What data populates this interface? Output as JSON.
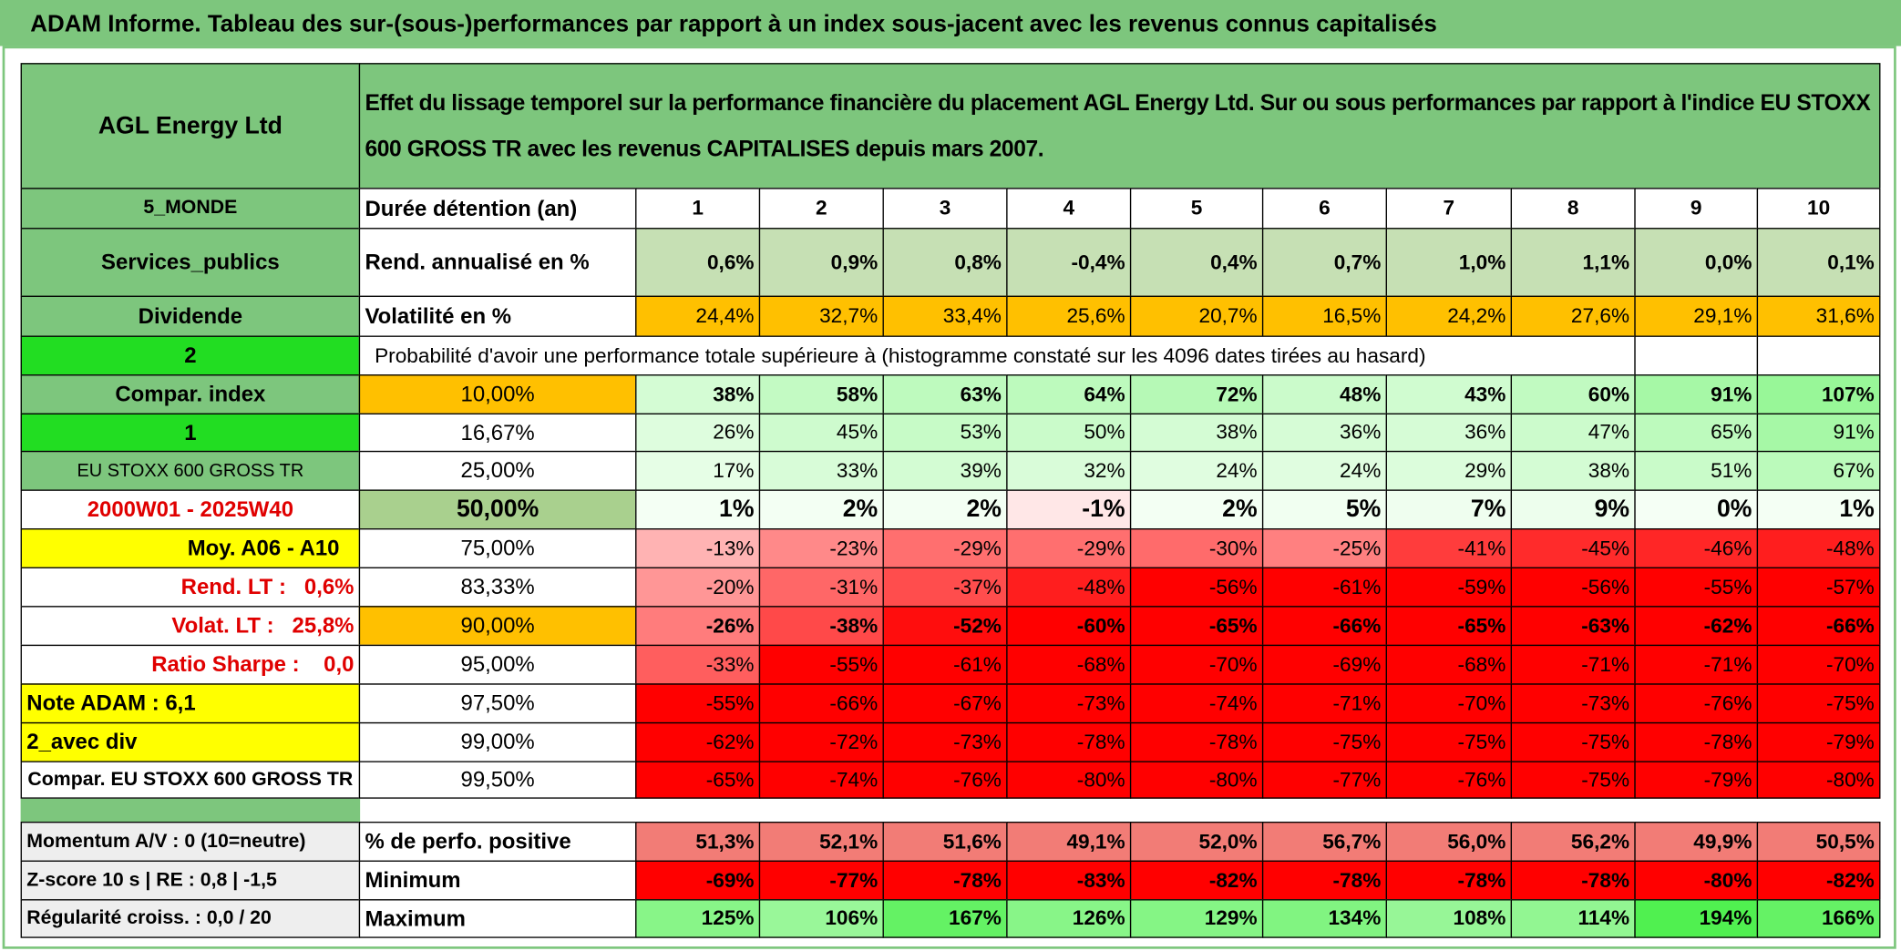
{
  "title": "ADAM Informe. Tableau des sur-(sous-)performances par rapport à un index sous-jacent avec les revenus connus capitalisés",
  "header": {
    "name": "AGL Energy Ltd",
    "description": "Effet du lissage temporel sur la performance financière du placement AGL Energy Ltd. Sur ou sous performances par rapport à l'indice EU STOXX 600 GROSS TR avec les revenus CAPITALISES depuis mars 2007."
  },
  "rows": [
    {
      "label": "5_MONDE",
      "metric": "Durée détention (an)",
      "values": [
        1,
        2,
        3,
        4,
        5,
        6,
        7,
        8,
        9,
        10
      ]
    },
    {
      "label": "Services_publics",
      "metric": "Rend. annualisé en %",
      "values": [
        "0,6%",
        "0,9%",
        "0,8%",
        "-0,4%",
        "0,4%",
        "0,7%",
        "1,0%",
        "1,1%",
        "0,0%",
        "0,1%"
      ]
    },
    {
      "label": "Dividende",
      "metric": "Volatilité en %",
      "values": [
        "24,4%",
        "32,7%",
        "33,4%",
        "25,6%",
        "20,7%",
        "16,5%",
        "24,2%",
        "27,6%",
        "29,1%",
        "31,6%"
      ]
    },
    {
      "label": "2",
      "note": "Probabilité d'avoir une performance totale supérieure à (histogramme constaté sur les 4096 dates tirées au hasard)"
    },
    {
      "label": "Compar. index",
      "metric": "10,00%",
      "values": [
        "38%",
        "58%",
        "63%",
        "64%",
        "72%",
        "48%",
        "43%",
        "60%",
        "91%",
        "107%"
      ]
    },
    {
      "label": "1",
      "metric": "16,67%",
      "values": [
        "26%",
        "45%",
        "53%",
        "50%",
        "38%",
        "36%",
        "36%",
        "47%",
        "65%",
        "91%"
      ]
    },
    {
      "label": "EU STOXX 600 GROSS TR",
      "metric": "25,00%",
      "values": [
        "17%",
        "33%",
        "39%",
        "32%",
        "24%",
        "24%",
        "29%",
        "38%",
        "51%",
        "67%"
      ]
    },
    {
      "label": "2000W01 - 2025W40",
      "metric": "50,00%",
      "values": [
        "1%",
        "2%",
        "2%",
        "-1%",
        "2%",
        "5%",
        "7%",
        "9%",
        "0%",
        "1%"
      ]
    },
    {
      "label": "Moy. A06 - A10",
      "metric": "75,00%",
      "values": [
        "-13%",
        "-23%",
        "-29%",
        "-29%",
        "-30%",
        "-25%",
        "-41%",
        "-45%",
        "-46%",
        "-48%"
      ]
    },
    {
      "label": "Rend. LT :   0,6%",
      "metric": "83,33%",
      "values": [
        "-20%",
        "-31%",
        "-37%",
        "-48%",
        "-56%",
        "-61%",
        "-59%",
        "-56%",
        "-55%",
        "-57%"
      ]
    },
    {
      "label": "Volat. LT :   25,8%",
      "metric": "90,00%",
      "values": [
        "-26%",
        "-38%",
        "-52%",
        "-60%",
        "-65%",
        "-66%",
        "-65%",
        "-63%",
        "-62%",
        "-66%"
      ]
    },
    {
      "label": "Ratio Sharpe :    0,0",
      "metric": "95,00%",
      "values": [
        "-33%",
        "-55%",
        "-61%",
        "-68%",
        "-70%",
        "-69%",
        "-68%",
        "-71%",
        "-71%",
        "-70%"
      ]
    },
    {
      "label": "Note ADAM : 6,1",
      "metric": "97,50%",
      "values": [
        "-55%",
        "-66%",
        "-67%",
        "-73%",
        "-74%",
        "-71%",
        "-70%",
        "-73%",
        "-76%",
        "-75%"
      ]
    },
    {
      "label": "2_avec div",
      "metric": "99,00%",
      "values": [
        "-62%",
        "-72%",
        "-73%",
        "-78%",
        "-78%",
        "-75%",
        "-75%",
        "-75%",
        "-78%",
        "-79%"
      ]
    },
    {
      "label": "Compar. EU STOXX 600 GROSS TR",
      "metric": "99,50%",
      "values": [
        "-65%",
        "-74%",
        "-76%",
        "-80%",
        "-80%",
        "-77%",
        "-76%",
        "-75%",
        "-79%",
        "-80%"
      ]
    },
    {
      "label": "Momentum A/V : 0 (10=neutre)",
      "metric": "% de perfo. positive",
      "values": [
        "51,3%",
        "52,1%",
        "51,6%",
        "49,1%",
        "52,0%",
        "56,7%",
        "56,0%",
        "56,2%",
        "49,9%",
        "50,5%"
      ]
    },
    {
      "label": "Z-score 10 s | RE : 0,8 | -1,5",
      "metric": "Minimum",
      "values": [
        "-69%",
        "-77%",
        "-78%",
        "-83%",
        "-82%",
        "-78%",
        "-78%",
        "-78%",
        "-80%",
        "-82%"
      ]
    },
    {
      "label": "Régularité croiss. : 0,0 / 20",
      "metric": "Maximum",
      "values": [
        "125%",
        "106%",
        "167%",
        "126%",
        "129%",
        "134%",
        "108%",
        "114%",
        "194%",
        "166%"
      ]
    }
  ]
}
